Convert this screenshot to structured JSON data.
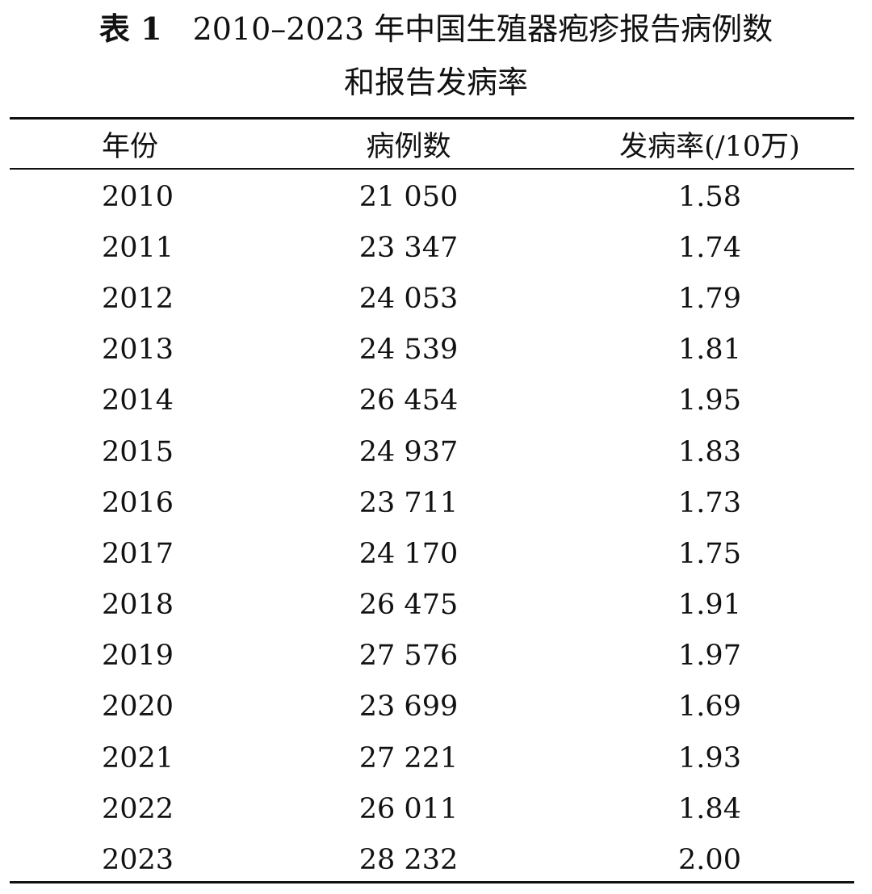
{
  "caption": {
    "label": "表 1",
    "title_line1": "2010–2023 年中国生殖器疱疹报告病例数",
    "title_line2": "和报告发病率"
  },
  "table": {
    "headers": [
      "年份",
      "病例数",
      "发病率(/10万)"
    ],
    "rows": [
      [
        "2010",
        "21 050",
        "1.58"
      ],
      [
        "2011",
        "23 347",
        "1.74"
      ],
      [
        "2012",
        "24 053",
        "1.79"
      ],
      [
        "2013",
        "24 539",
        "1.81"
      ],
      [
        "2014",
        "26 454",
        "1.95"
      ],
      [
        "2015",
        "24 937",
        "1.83"
      ],
      [
        "2016",
        "23 711",
        "1.73"
      ],
      [
        "2017",
        "24 170",
        "1.75"
      ],
      [
        "2018",
        "26 475",
        "1.91"
      ],
      [
        "2019",
        "27 576",
        "1.97"
      ],
      [
        "2020",
        "23 699",
        "1.69"
      ],
      [
        "2021",
        "27 221",
        "1.93"
      ],
      [
        "2022",
        "26 011",
        "1.84"
      ],
      [
        "2023",
        "28 232",
        "2.00"
      ]
    ]
  }
}
